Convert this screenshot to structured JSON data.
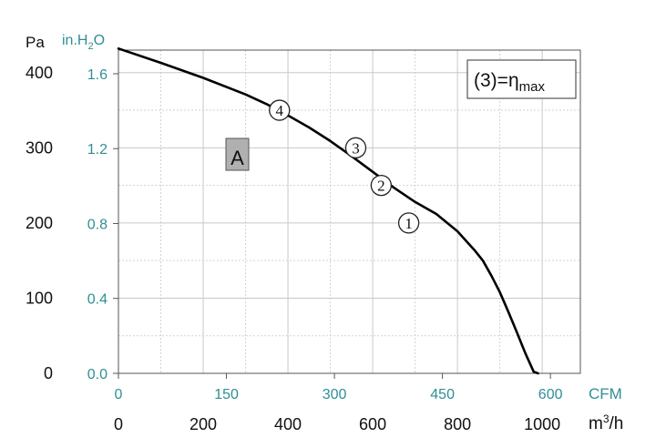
{
  "chart_data": {
    "type": "line",
    "series": [
      {
        "x": [
          0,
          100,
          200,
          300,
          350,
          400,
          450,
          500,
          550,
          600,
          650,
          700,
          750,
          800,
          840,
          860,
          880,
          900,
          920,
          940,
          960,
          980,
          990
        ],
        "values": [
          432,
          413,
          393,
          371,
          358,
          343,
          327,
          309,
          289,
          268,
          247,
          228,
          212,
          189,
          164,
          150,
          130,
          108,
          82,
          55,
          27,
          2,
          0
        ]
      }
    ],
    "xlim": [
      0,
      1090
    ],
    "ylim": [
      0,
      430
    ],
    "x_primary": {
      "unit": "m³/h",
      "ticks": [
        0,
        200,
        400,
        600,
        800,
        1000
      ]
    },
    "x_secondary": {
      "unit": "CFM",
      "ticks": [
        "0",
        "150",
        "300",
        "450",
        "600"
      ]
    },
    "y_primary": {
      "unit": "Pa",
      "ticks": [
        0,
        100,
        200,
        300,
        400
      ]
    },
    "y_secondary": {
      "unit_base": "in.H",
      "unit_sub": "2",
      "unit_end": "O",
      "ticks": [
        "0.0",
        "0.4",
        "0.8",
        "1.2",
        "1.6"
      ]
    },
    "points": [
      {
        "label": "1",
        "x": 685,
        "y": 200
      },
      {
        "label": "2",
        "x": 620,
        "y": 250
      },
      {
        "label": "3",
        "x": 560,
        "y": 300
      },
      {
        "label": "4",
        "x": 380,
        "y": 350
      }
    ],
    "curve_label": "A",
    "legend": {
      "prefix": "(3)=",
      "symbol": "η",
      "sub": "max"
    },
    "grid": true,
    "colors": {
      "curve": "#000000",
      "secondary_text": "#2f8f96",
      "curve_label_bg": "#b0b0b0"
    }
  }
}
